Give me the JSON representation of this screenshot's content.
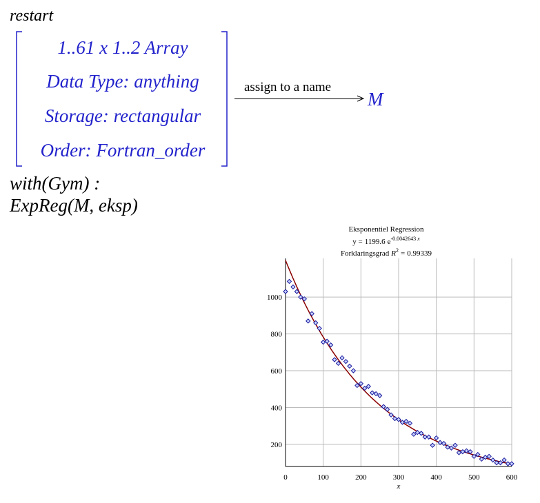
{
  "worksheet": {
    "first": "restart",
    "second": "with(Gym) :",
    "third": "ExpReg(M, eksp)"
  },
  "output": {
    "rows": [
      "1..61 x 1..2 Array",
      "Data Type: anything",
      "Storage: rectangular",
      "Order: Fortran_order"
    ],
    "arrow_label": "assign to a name",
    "name": "M"
  },
  "chart_data": {
    "type": "scatter",
    "title": "Eksponentiel Regression",
    "fit_label": {
      "lhs": "y =",
      "base": "e",
      "var": "x"
    },
    "fit": {
      "a": 1199.6,
      "k": -0.0042643
    },
    "r2_label": {
      "text": "Forklaringsgrad",
      "sym": "R",
      "sup": 2,
      "eq": "="
    },
    "r2": 0.99339,
    "xlabel": "x",
    "x": [
      0,
      10,
      20,
      30,
      40,
      50,
      60,
      70,
      80,
      90,
      100,
      110,
      120,
      130,
      140,
      150,
      160,
      170,
      180,
      190,
      200,
      210,
      220,
      230,
      240,
      250,
      260,
      270,
      280,
      290,
      300,
      310,
      320,
      330,
      340,
      350,
      360,
      370,
      380,
      390,
      400,
      410,
      420,
      430,
      440,
      450,
      460,
      470,
      480,
      490,
      500,
      510,
      520,
      530,
      540,
      550,
      560,
      570,
      580,
      590,
      600
    ],
    "values": [
      1030,
      1085,
      1055,
      1030,
      1000,
      990,
      870,
      910,
      860,
      830,
      755,
      760,
      740,
      660,
      640,
      670,
      650,
      625,
      600,
      520,
      530,
      505,
      515,
      480,
      475,
      465,
      405,
      390,
      360,
      340,
      335,
      320,
      325,
      315,
      255,
      265,
      260,
      240,
      240,
      195,
      235,
      210,
      205,
      185,
      180,
      195,
      155,
      160,
      165,
      160,
      135,
      145,
      120,
      130,
      135,
      115,
      100,
      100,
      115,
      95,
      95
    ],
    "color": "#1a1a9c",
    "fit_color": "#8b0000",
    "xlim": [
      0,
      600
    ],
    "xticks": [
      0,
      100,
      200,
      300,
      400,
      500,
      600
    ],
    "ylim": [
      80,
      1210
    ],
    "yticks": [
      200,
      400,
      600,
      800,
      1000
    ],
    "grid": true
  }
}
